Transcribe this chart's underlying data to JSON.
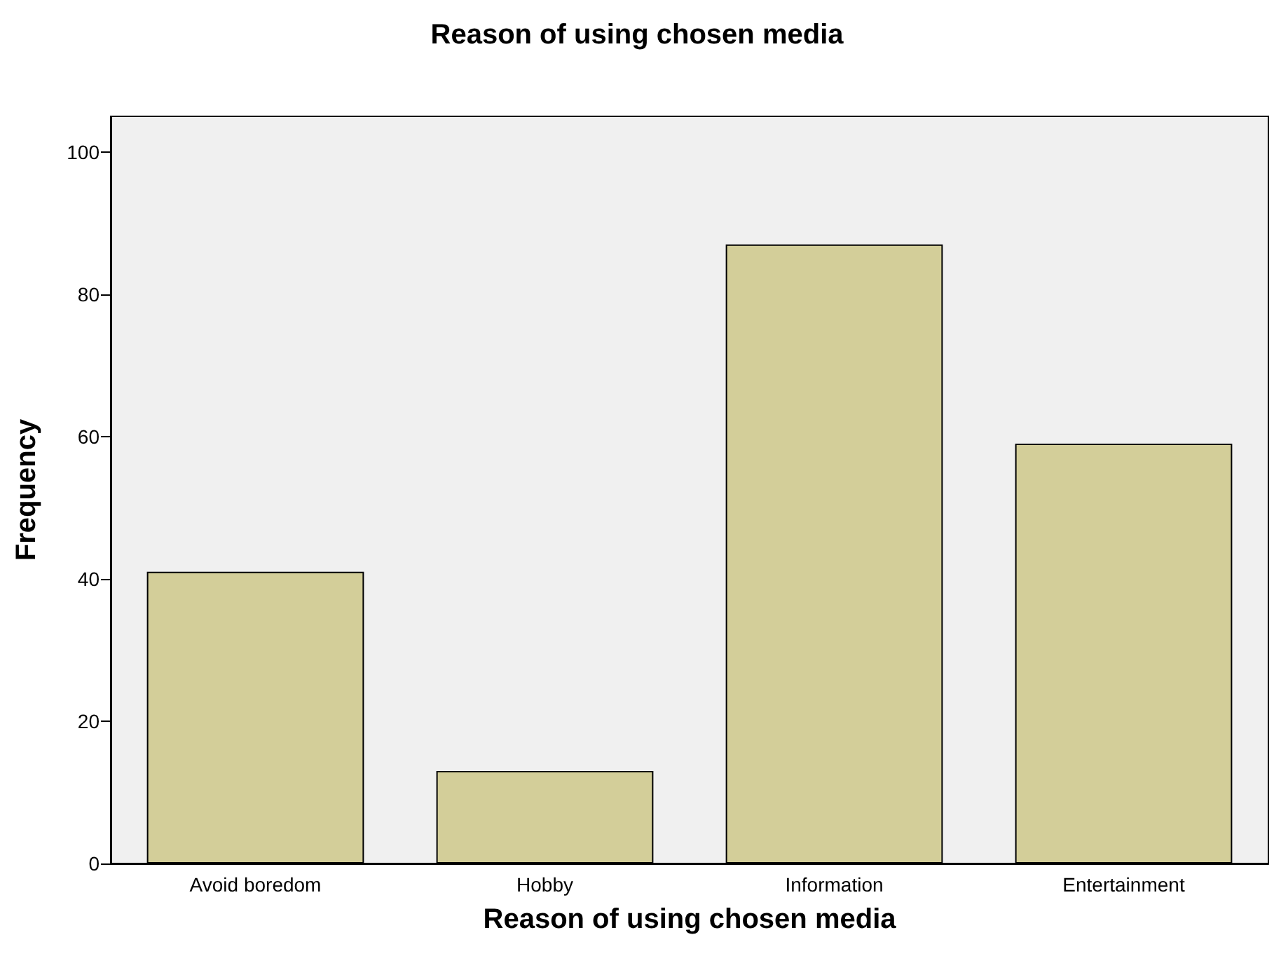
{
  "chart_data": {
    "type": "bar",
    "title": "Reason of using chosen media",
    "xlabel": "Reason of using chosen media",
    "ylabel": "Frequency",
    "categories": [
      "Avoid boredom",
      "Hobby",
      "Information",
      "Entertainment"
    ],
    "values": [
      41,
      13,
      87,
      59
    ],
    "color": "#d3ce99",
    "ylim": [
      0,
      105
    ],
    "yticks": [
      0,
      20,
      40,
      60,
      80,
      100
    ],
    "grid": false
  }
}
